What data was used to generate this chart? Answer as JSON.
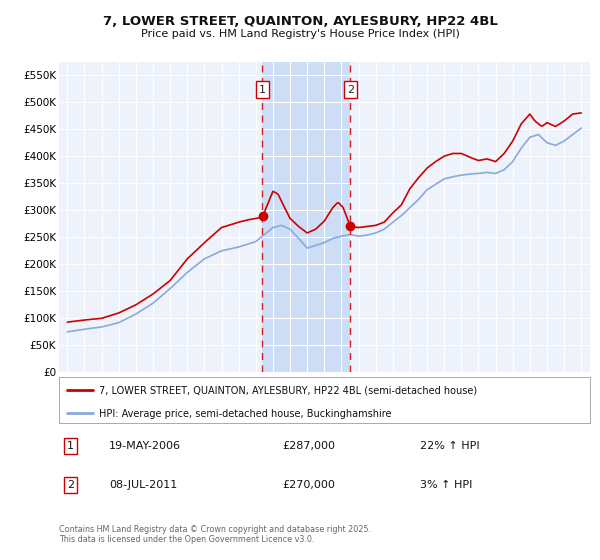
{
  "title": "7, LOWER STREET, QUAINTON, AYLESBURY, HP22 4BL",
  "subtitle": "Price paid vs. HM Land Registry's House Price Index (HPI)",
  "background_color": "#ffffff",
  "plot_bg_color": "#eef2fa",
  "grid_color": "#ffffff",
  "sale1_x": 2006.38,
  "sale2_x": 2011.52,
  "legend_label_red": "7, LOWER STREET, QUAINTON, AYLESBURY, HP22 4BL (semi-detached house)",
  "legend_label_blue": "HPI: Average price, semi-detached house, Buckinghamshire",
  "annotation1_text": "19-MAY-2006",
  "annotation1_price": "£287,000",
  "annotation1_pct": "22% ↑ HPI",
  "annotation2_text": "08-JUL-2011",
  "annotation2_price": "£270,000",
  "annotation2_pct": "3% ↑ HPI",
  "footnote1": "Contains HM Land Registry data © Crown copyright and database right 2025.",
  "footnote2": "This data is licensed under the Open Government Licence v3.0.",
  "ylim": [
    0,
    575000
  ],
  "xlim": [
    1994.5,
    2025.5
  ],
  "yticks": [
    0,
    50000,
    100000,
    150000,
    200000,
    250000,
    300000,
    350000,
    400000,
    450000,
    500000,
    550000
  ],
  "ytick_labels": [
    "£0",
    "£50K",
    "£100K",
    "£150K",
    "£200K",
    "£250K",
    "£300K",
    "£350K",
    "£400K",
    "£450K",
    "£500K",
    "£550K"
  ],
  "xticks": [
    1995,
    1996,
    1997,
    1998,
    1999,
    2000,
    2001,
    2002,
    2003,
    2004,
    2005,
    2006,
    2007,
    2008,
    2009,
    2010,
    2011,
    2012,
    2013,
    2014,
    2015,
    2016,
    2017,
    2018,
    2019,
    2020,
    2021,
    2022,
    2023,
    2024,
    2025
  ],
  "red_color": "#cc0000",
  "blue_color": "#88aadd",
  "shade_color": "#ccddf5",
  "vline_color": "#cc2222",
  "marker_color": "#cc0000",
  "sale1_price": 287000,
  "sale2_price": 270000
}
